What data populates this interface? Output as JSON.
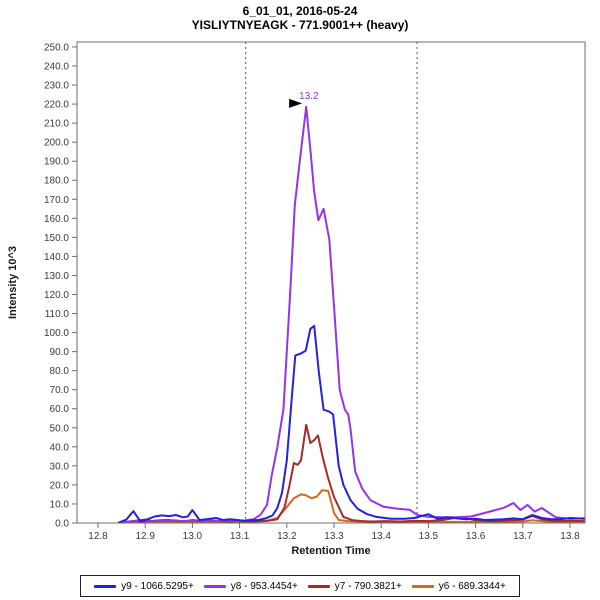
{
  "header": {
    "title_line1": "6_01_01, 2016-05-24",
    "title_line2": "YISLIYTNYEAGK - 771.9001++ (heavy)"
  },
  "chart_data": {
    "type": "line",
    "title": "6_01_01, 2016-05-24",
    "subtitle": "YISLIYTNYEAGK - 771.9001++ (heavy)",
    "xlabel": "Retention Time",
    "ylabel": "Intensity 10^3",
    "xlim": [
      12.755,
      13.832
    ],
    "ylim": [
      0,
      252.6
    ],
    "grid": false,
    "legend_position": "bottom",
    "x_tick_labels": [
      "12.8",
      "12.9",
      "13.0",
      "13.1",
      "13.2",
      "13.3",
      "13.4",
      "13.5",
      "13.6",
      "13.7",
      "13.8"
    ],
    "y_tick_labels": [
      "0.0",
      "10.0",
      "20.0",
      "30.0",
      "40.0",
      "50.0",
      "60.0",
      "70.0",
      "80.0",
      "90.0",
      "100.0",
      "110.0",
      "120.0",
      "130.0",
      "140.0",
      "150.0",
      "160.0",
      "170.0",
      "180.0",
      "190.0",
      "200.0",
      "210.0",
      "220.0",
      "230.0",
      "240.0",
      "250.0"
    ],
    "integration_boundaries": {
      "style": "dashed",
      "color": "#555555",
      "x_values": [
        13.113,
        13.476
      ]
    },
    "peak_annotation": {
      "text": "13.2",
      "x": 13.241,
      "y": 218.5,
      "text_color": "#9733E6",
      "marker": "black-right-arrow"
    },
    "axis_color": "#6e6e6e",
    "tick_text_color": "#3a3a3a",
    "series": [
      {
        "name": "y6 - 689.3344+",
        "ion": "y6",
        "mz": "689.3344+",
        "color": "#D2691E",
        "points": [
          [
            12.845,
            0.2
          ],
          [
            12.87,
            0.5
          ],
          [
            12.9,
            0.4
          ],
          [
            12.93,
            0.6
          ],
          [
            12.96,
            0.5
          ],
          [
            12.99,
            0.6
          ],
          [
            13.02,
            0.5
          ],
          [
            13.05,
            0.5
          ],
          [
            13.08,
            0.5
          ],
          [
            13.11,
            0.6
          ],
          [
            13.14,
            0.8
          ],
          [
            13.16,
            1.2
          ],
          [
            13.18,
            2.6
          ],
          [
            13.2,
            8.4
          ],
          [
            13.215,
            13.0
          ],
          [
            13.23,
            15.0
          ],
          [
            13.241,
            14.5
          ],
          [
            13.252,
            13.1
          ],
          [
            13.263,
            13.7
          ],
          [
            13.275,
            17.2
          ],
          [
            13.288,
            16.8
          ],
          [
            13.3,
            5.3
          ],
          [
            13.31,
            1.6
          ],
          [
            13.33,
            1.0
          ],
          [
            13.36,
            0.8
          ],
          [
            13.4,
            0.6
          ],
          [
            13.45,
            0.5
          ],
          [
            13.5,
            0.6
          ],
          [
            13.55,
            0.6
          ],
          [
            13.6,
            0.5
          ],
          [
            13.65,
            0.6
          ],
          [
            13.7,
            0.8
          ],
          [
            13.72,
            1.4
          ],
          [
            13.75,
            0.8
          ],
          [
            13.78,
            0.6
          ],
          [
            13.83,
            0.5
          ]
        ]
      },
      {
        "name": "y7 - 790.3821+",
        "ion": "y7",
        "mz": "790.3821+",
        "color": "#A52A2A",
        "points": [
          [
            12.845,
            0.3
          ],
          [
            12.86,
            0.6
          ],
          [
            12.88,
            1.2
          ],
          [
            12.9,
            1.8
          ],
          [
            12.915,
            1.0
          ],
          [
            12.93,
            1.4
          ],
          [
            12.95,
            1.6
          ],
          [
            12.97,
            1.0
          ],
          [
            12.99,
            1.2
          ],
          [
            13.0,
            1.6
          ],
          [
            13.02,
            1.0
          ],
          [
            13.04,
            1.2
          ],
          [
            13.06,
            1.0
          ],
          [
            13.08,
            0.8
          ],
          [
            13.1,
            1.0
          ],
          [
            13.12,
            0.8
          ],
          [
            13.14,
            1.0
          ],
          [
            13.16,
            1.2
          ],
          [
            13.18,
            2.0
          ],
          [
            13.195,
            8.0
          ],
          [
            13.205,
            19.0
          ],
          [
            13.215,
            31.5
          ],
          [
            13.223,
            30.5
          ],
          [
            13.23,
            33.0
          ],
          [
            13.241,
            51.5
          ],
          [
            13.25,
            42.0
          ],
          [
            13.258,
            43.5
          ],
          [
            13.266,
            46.0
          ],
          [
            13.276,
            34.5
          ],
          [
            13.287,
            24.0
          ],
          [
            13.3,
            13.7
          ],
          [
            13.31,
            8.4
          ],
          [
            13.32,
            3.2
          ],
          [
            13.34,
            1.4
          ],
          [
            13.36,
            1.0
          ],
          [
            13.38,
            0.8
          ],
          [
            13.41,
            1.0
          ],
          [
            13.44,
            0.8
          ],
          [
            13.47,
            1.1
          ],
          [
            13.5,
            1.0
          ],
          [
            13.53,
            1.6
          ],
          [
            13.56,
            2.8
          ],
          [
            13.58,
            2.4
          ],
          [
            13.6,
            1.4
          ],
          [
            13.62,
            1.2
          ],
          [
            13.64,
            1.0
          ],
          [
            13.66,
            1.2
          ],
          [
            13.68,
            1.4
          ],
          [
            13.7,
            1.8
          ],
          [
            13.72,
            3.6
          ],
          [
            13.74,
            2.0
          ],
          [
            13.76,
            1.2
          ],
          [
            13.78,
            1.0
          ],
          [
            13.8,
            1.2
          ],
          [
            13.83,
            1.0
          ]
        ]
      },
      {
        "name": "y8 - 953.4454+",
        "ion": "y8",
        "mz": "953.4454+",
        "color": "#9733E6",
        "points": [
          [
            12.845,
            0.3
          ],
          [
            12.86,
            0.6
          ],
          [
            12.88,
            1.0
          ],
          [
            12.9,
            0.8
          ],
          [
            12.92,
            1.2
          ],
          [
            12.94,
            1.0
          ],
          [
            12.96,
            1.4
          ],
          [
            12.98,
            1.0
          ],
          [
            13.0,
            1.2
          ],
          [
            13.02,
            1.0
          ],
          [
            13.04,
            1.2
          ],
          [
            13.06,
            1.0
          ],
          [
            13.08,
            1.2
          ],
          [
            13.1,
            1.0
          ],
          [
            13.115,
            1.4
          ],
          [
            13.13,
            2.0
          ],
          [
            13.145,
            4.5
          ],
          [
            13.158,
            9.5
          ],
          [
            13.168,
            25.0
          ],
          [
            13.18,
            40.0
          ],
          [
            13.193,
            60.0
          ],
          [
            13.207,
            120.0
          ],
          [
            13.217,
            167.0
          ],
          [
            13.228,
            191.0
          ],
          [
            13.241,
            218.5
          ],
          [
            13.25,
            196.0
          ],
          [
            13.258,
            174.0
          ],
          [
            13.267,
            159.0
          ],
          [
            13.278,
            165.0
          ],
          [
            13.29,
            149.0
          ],
          [
            13.3,
            114.0
          ],
          [
            13.312,
            70.0
          ],
          [
            13.323,
            59.5
          ],
          [
            13.33,
            57.0
          ],
          [
            13.335,
            49.5
          ],
          [
            13.345,
            27.0
          ],
          [
            13.36,
            18.0
          ],
          [
            13.377,
            12.0
          ],
          [
            13.405,
            8.5
          ],
          [
            13.435,
            7.5
          ],
          [
            13.46,
            7.0
          ],
          [
            13.477,
            4.2
          ],
          [
            13.5,
            3.2
          ],
          [
            13.53,
            3.0
          ],
          [
            13.56,
            3.0
          ],
          [
            13.59,
            3.4
          ],
          [
            13.62,
            5.3
          ],
          [
            13.66,
            8.0
          ],
          [
            13.68,
            10.5
          ],
          [
            13.695,
            6.8
          ],
          [
            13.71,
            9.5
          ],
          [
            13.725,
            6.0
          ],
          [
            13.74,
            7.9
          ],
          [
            13.77,
            3.0
          ],
          [
            13.8,
            2.2
          ],
          [
            13.83,
            2.5
          ]
        ]
      },
      {
        "name": "y9 - 1066.5295+",
        "ion": "y9",
        "mz": "1066.5295+",
        "color": "#2222DD",
        "points": [
          [
            12.845,
            0.3
          ],
          [
            12.86,
            1.8
          ],
          [
            12.875,
            6.2
          ],
          [
            12.89,
            0.8
          ],
          [
            12.905,
            2.0
          ],
          [
            12.92,
            3.4
          ],
          [
            12.935,
            4.0
          ],
          [
            12.95,
            3.6
          ],
          [
            12.965,
            4.2
          ],
          [
            12.98,
            3.0
          ],
          [
            12.99,
            3.4
          ],
          [
            13.0,
            6.8
          ],
          [
            13.015,
            1.6
          ],
          [
            13.03,
            2.0
          ],
          [
            13.05,
            2.6
          ],
          [
            13.065,
            1.6
          ],
          [
            13.08,
            2.0
          ],
          [
            13.095,
            1.6
          ],
          [
            13.11,
            1.2
          ],
          [
            13.125,
            1.4
          ],
          [
            13.14,
            1.6
          ],
          [
            13.155,
            2.4
          ],
          [
            13.17,
            4.0
          ],
          [
            13.18,
            8.0
          ],
          [
            13.19,
            16.0
          ],
          [
            13.2,
            33.0
          ],
          [
            13.21,
            64.0
          ],
          [
            13.218,
            88.0
          ],
          [
            13.23,
            89.0
          ],
          [
            13.24,
            90.5
          ],
          [
            13.25,
            102.0
          ],
          [
            13.258,
            103.5
          ],
          [
            13.268,
            79.0
          ],
          [
            13.278,
            59.5
          ],
          [
            13.29,
            58.5
          ],
          [
            13.298,
            57.0
          ],
          [
            13.31,
            30.0
          ],
          [
            13.32,
            20.0
          ],
          [
            13.335,
            12.0
          ],
          [
            13.35,
            7.5
          ],
          [
            13.37,
            4.7
          ],
          [
            13.39,
            3.2
          ],
          [
            13.42,
            2.2
          ],
          [
            13.45,
            2.2
          ],
          [
            13.47,
            2.6
          ],
          [
            13.5,
            4.6
          ],
          [
            13.52,
            2.2
          ],
          [
            13.54,
            3.0
          ],
          [
            13.56,
            2.4
          ],
          [
            13.58,
            2.0
          ],
          [
            13.6,
            2.2
          ],
          [
            13.62,
            1.6
          ],
          [
            13.64,
            1.8
          ],
          [
            13.66,
            2.0
          ],
          [
            13.68,
            2.4
          ],
          [
            13.7,
            2.0
          ],
          [
            13.72,
            4.2
          ],
          [
            13.74,
            2.6
          ],
          [
            13.76,
            2.0
          ],
          [
            13.78,
            2.0
          ],
          [
            13.8,
            2.6
          ],
          [
            13.83,
            2.2
          ]
        ]
      }
    ],
    "legend_order": [
      "y9 - 1066.5295+",
      "y8 - 953.4454+",
      "y7 - 790.3821+",
      "y6 - 689.3344+"
    ]
  }
}
